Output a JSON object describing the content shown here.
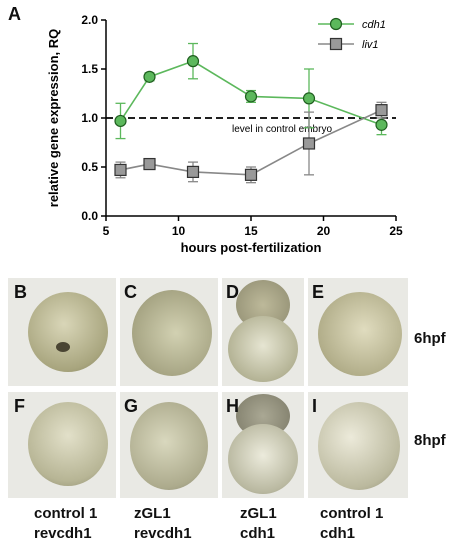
{
  "chart_data": {
    "type": "line",
    "panel": "A",
    "ylabel": "relative gene expression, RQ",
    "xlabel": "hours post-fertilization",
    "xlim": [
      5,
      25
    ],
    "ylim": [
      0.0,
      2.0
    ],
    "xticks": [
      "5",
      "10",
      "15",
      "20",
      "25"
    ],
    "yticks": [
      "0.0",
      "0.5",
      "1.0",
      "1.5",
      "2.0"
    ],
    "legend_placement": "top-right",
    "reference_line": {
      "y": 1.0,
      "label": "level in control embryo"
    },
    "series": [
      {
        "name": "cdh1",
        "color": "#5cb85c",
        "marker": "circle",
        "x": [
          6,
          8,
          11,
          15,
          19,
          24
        ],
        "y": [
          0.97,
          1.42,
          1.58,
          1.22,
          1.2,
          0.93
        ],
        "err": [
          0.18,
          0.04,
          0.18,
          0.06,
          0.3,
          0.1
        ]
      },
      {
        "name": "liv1",
        "color": "#888888",
        "marker": "square",
        "x": [
          6,
          8,
          11,
          15,
          19,
          24
        ],
        "y": [
          0.47,
          0.53,
          0.45,
          0.42,
          0.74,
          1.08
        ],
        "err": [
          0.08,
          0.04,
          0.1,
          0.08,
          0.32,
          0.08
        ]
      }
    ]
  },
  "panels": {
    "B": "B",
    "C": "C",
    "D": "D",
    "E": "E",
    "F": "F",
    "G": "G",
    "H": "H",
    "I": "I"
  },
  "stages": {
    "row1": "6hpf",
    "row2": "8hpf"
  },
  "conditions": [
    {
      "line1": "control 1",
      "line2": "revcdh1"
    },
    {
      "line1": "zGL1",
      "line2": "revcdh1"
    },
    {
      "line1": "zGL1",
      "line2": "cdh1"
    },
    {
      "line1": "control 1",
      "line2": "cdh1"
    }
  ]
}
